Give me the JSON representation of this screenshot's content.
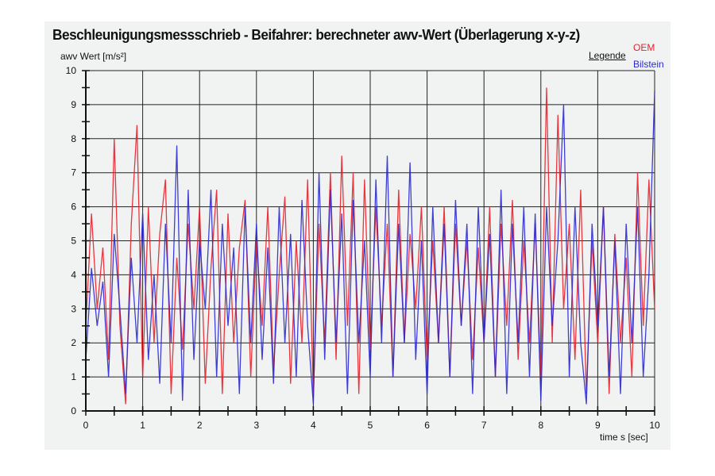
{
  "chart_data": {
    "type": "line",
    "title": "Beschleunigungsmessschrieb - Beifahrer: berechneter awv-Wert (Überlagerung x-y-z)",
    "xlabel": "time s [sec]",
    "ylabel": "awv Wert [m/s²]",
    "xlim": [
      0,
      10
    ],
    "ylim": [
      0,
      10
    ],
    "xticks": [
      "0",
      "1",
      "2",
      "3",
      "4",
      "5",
      "6",
      "7",
      "8",
      "9",
      "10"
    ],
    "yticks": [
      "0",
      "1",
      "2",
      "3",
      "4",
      "5",
      "6",
      "7",
      "8",
      "9",
      "10"
    ],
    "grid": true,
    "legend_title": "Legende",
    "legend_position": "top-right",
    "x_step": 0.1,
    "series": [
      {
        "name": "OEM",
        "color": "#e8202a",
        "values": [
          2.5,
          5.8,
          3.0,
          4.8,
          1.5,
          8.0,
          2.5,
          0.2,
          5.5,
          8.4,
          1.0,
          6.0,
          2.0,
          5.2,
          6.8,
          0.5,
          4.5,
          1.8,
          5.5,
          3.0,
          6.0,
          0.8,
          4.2,
          6.5,
          0.5,
          5.8,
          2.0,
          4.8,
          6.2,
          1.0,
          5.0,
          2.5,
          6.0,
          1.2,
          4.0,
          6.3,
          0.8,
          5.0,
          2.0,
          6.8,
          0.4,
          5.5,
          2.0,
          7.0,
          1.5,
          7.5,
          2.5,
          7.0,
          0.5,
          6.8,
          1.8,
          6.0,
          2.5,
          5.5,
          1.0,
          6.5,
          2.0,
          5.2,
          3.0,
          6.0,
          1.5,
          5.0,
          2.0,
          6.0,
          1.0,
          5.5,
          2.5,
          5.0,
          1.5,
          4.8,
          2.0,
          6.0,
          1.0,
          5.5,
          2.5,
          6.2,
          1.5,
          5.0,
          2.0,
          5.5,
          1.0,
          9.5,
          2.0,
          8.7,
          3.0,
          5.5,
          1.5,
          6.5,
          0.5,
          5.0,
          2.0,
          6.0,
          0.5,
          5.2,
          2.0,
          4.5,
          1.0,
          7.0,
          2.5,
          6.8,
          3.0
        ]
      },
      {
        "name": "Bilstein",
        "color": "#2a2ad0",
        "values": [
          1.5,
          4.2,
          2.5,
          3.8,
          1.0,
          5.2,
          3.0,
          0.5,
          4.5,
          2.0,
          5.8,
          1.5,
          4.0,
          0.8,
          5.5,
          2.0,
          7.8,
          0.3,
          6.5,
          1.5,
          5.0,
          3.0,
          6.5,
          1.0,
          5.5,
          2.5,
          4.8,
          0.5,
          6.0,
          2.0,
          5.5,
          1.5,
          4.8,
          0.8,
          6.0,
          2.0,
          5.2,
          1.0,
          6.2,
          2.5,
          0.2,
          7.0,
          1.5,
          6.5,
          2.0,
          5.8,
          0.5,
          6.2,
          2.0,
          5.0,
          1.0,
          6.8,
          2.0,
          7.5,
          1.0,
          5.5,
          2.0,
          7.3,
          1.5,
          5.0,
          0.5,
          6.0,
          2.0,
          5.5,
          1.0,
          6.2,
          2.5,
          5.5,
          0.5,
          6.0,
          2.0,
          5.2,
          1.0,
          6.5,
          0.5,
          5.5,
          2.0,
          6.0,
          1.0,
          5.8,
          0.3,
          6.0,
          2.5,
          5.0,
          9.0,
          1.0,
          6.0,
          2.0,
          0.2,
          5.5,
          2.5,
          6.0,
          1.0,
          5.0,
          0.5,
          5.5,
          2.0,
          6.0,
          1.0,
          4.0,
          9.4
        ]
      }
    ]
  }
}
